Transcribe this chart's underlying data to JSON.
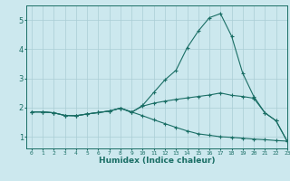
{
  "xlabel": "Humidex (Indice chaleur)",
  "xlim": [
    -0.5,
    23
  ],
  "ylim": [
    0.6,
    5.5
  ],
  "yticks": [
    1,
    2,
    3,
    4,
    5
  ],
  "xticks": [
    0,
    1,
    2,
    3,
    4,
    5,
    6,
    7,
    8,
    9,
    10,
    11,
    12,
    13,
    14,
    15,
    16,
    17,
    18,
    19,
    20,
    21,
    22,
    23
  ],
  "bg_color": "#cce8ee",
  "line_color": "#1a6e65",
  "grid_color": "#aacdd5",
  "series1_x": [
    0,
    1,
    2,
    3,
    4,
    5,
    6,
    7,
    8,
    9,
    10,
    11,
    12,
    13,
    14,
    15,
    16,
    17,
    18,
    19,
    20,
    21,
    22,
    23
  ],
  "series1_y": [
    1.85,
    1.85,
    1.82,
    1.73,
    1.72,
    1.78,
    1.83,
    1.88,
    1.98,
    1.83,
    2.08,
    2.52,
    2.95,
    3.28,
    4.05,
    4.62,
    5.08,
    5.22,
    4.45,
    3.18,
    2.38,
    1.82,
    1.55,
    0.85
  ],
  "series2_x": [
    0,
    1,
    2,
    3,
    4,
    5,
    6,
    7,
    8,
    9,
    10,
    11,
    12,
    13,
    14,
    15,
    16,
    17,
    18,
    19,
    20,
    21,
    22,
    23
  ],
  "series2_y": [
    1.85,
    1.85,
    1.82,
    1.73,
    1.72,
    1.78,
    1.83,
    1.88,
    1.98,
    1.85,
    2.05,
    2.15,
    2.22,
    2.28,
    2.33,
    2.38,
    2.43,
    2.5,
    2.42,
    2.38,
    2.32,
    1.82,
    1.55,
    0.85
  ],
  "series3_x": [
    0,
    1,
    2,
    3,
    4,
    5,
    6,
    7,
    8,
    9,
    10,
    11,
    12,
    13,
    14,
    15,
    16,
    17,
    18,
    19,
    20,
    21,
    22,
    23
  ],
  "series3_y": [
    1.85,
    1.85,
    1.82,
    1.73,
    1.72,
    1.78,
    1.83,
    1.88,
    1.98,
    1.85,
    1.72,
    1.58,
    1.45,
    1.32,
    1.2,
    1.1,
    1.05,
    1.0,
    0.98,
    0.95,
    0.92,
    0.9,
    0.87,
    0.85
  ]
}
